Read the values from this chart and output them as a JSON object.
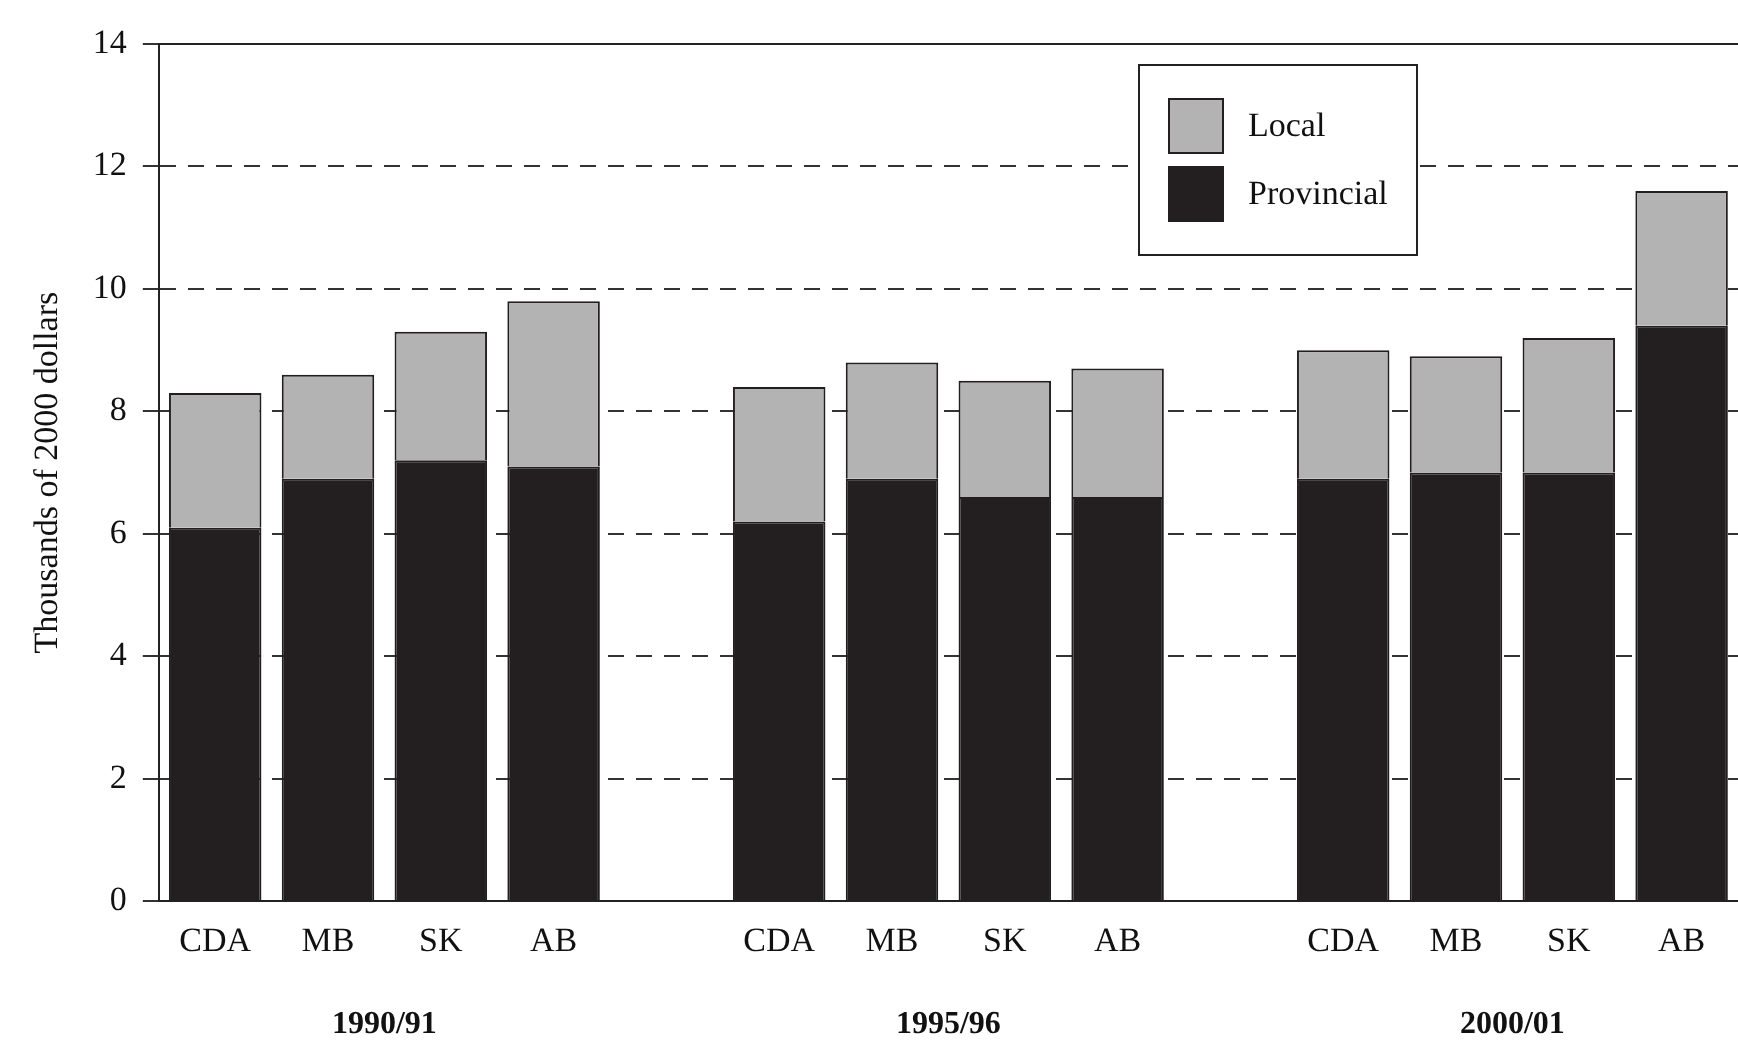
{
  "chart_data": {
    "type": "bar",
    "stacked": true,
    "ylabel": "Thousands of 2000 dollars",
    "categories": [
      "CDA",
      "MB",
      "SK",
      "AB",
      null,
      "CDA",
      "MB",
      "SK",
      "AB",
      null,
      "CDA",
      "MB",
      "SK",
      "AB"
    ],
    "series": [
      {
        "name": "Provincial",
        "color": "#231f20",
        "values": [
          6.1,
          6.9,
          7.2,
          7.1,
          null,
          6.2,
          6.9,
          6.6,
          6.6,
          null,
          6.9,
          7.0,
          7.0,
          9.4
        ]
      },
      {
        "name": "Local",
        "color": "#b3b3b3",
        "values": [
          2.2,
          1.7,
          2.1,
          2.7,
          null,
          2.2,
          1.9,
          1.9,
          2.1,
          null,
          2.1,
          1.9,
          2.2,
          2.2
        ]
      }
    ],
    "ylim": [
      0,
      14
    ],
    "yticks": [
      0,
      2,
      4,
      6,
      8,
      10,
      12,
      14
    ],
    "grid": "y",
    "legend": "top right",
    "annotations": [
      "1990/91",
      "1995/96",
      "2000/01"
    ]
  }
}
